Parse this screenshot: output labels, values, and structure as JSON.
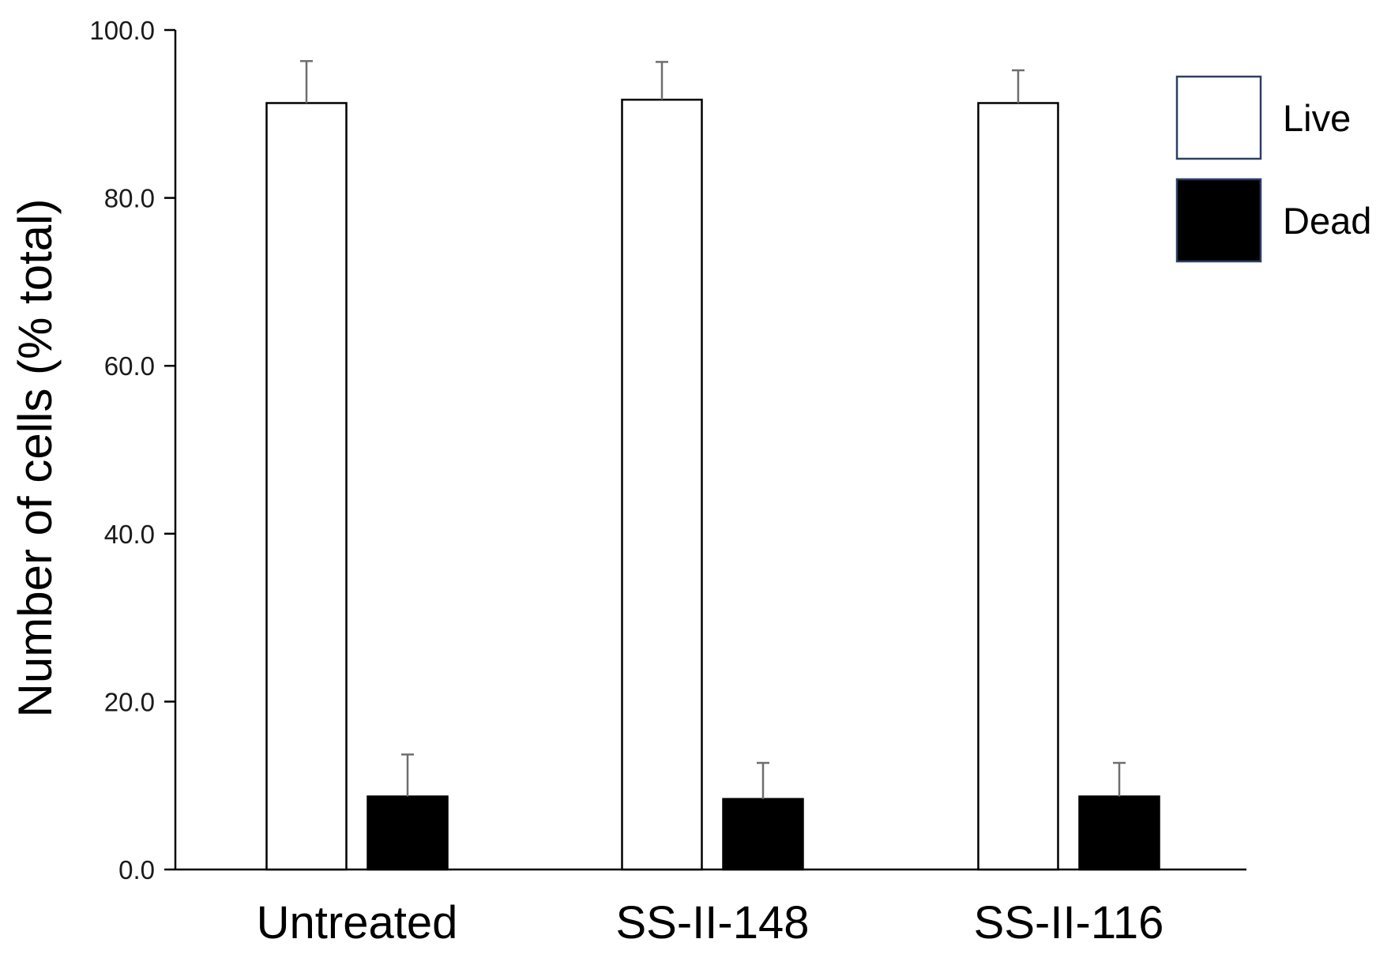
{
  "chart_data": {
    "type": "bar",
    "title": "",
    "xlabel": "",
    "ylabel": "Number of cells (% total)",
    "ylim": [
      0,
      100
    ],
    "yticks": [
      0,
      20,
      40,
      60,
      80,
      100
    ],
    "ytick_labels": [
      "0.0",
      "20.0",
      "40.0",
      "60.0",
      "80.0",
      "100.0"
    ],
    "categories": [
      "Untreated",
      "SS-II-148",
      "SS-II-116"
    ],
    "series": [
      {
        "name": "Live",
        "values": [
          91.3,
          91.7,
          91.3
        ],
        "errors": [
          5.0,
          4.5,
          3.9
        ],
        "color": "#ffffff"
      },
      {
        "name": "Dead",
        "values": [
          8.7,
          8.4,
          8.7
        ],
        "errors": [
          5.0,
          4.3,
          4.0
        ],
        "color": "#000000"
      }
    ],
    "grid": false,
    "legend_position": "top-right"
  }
}
